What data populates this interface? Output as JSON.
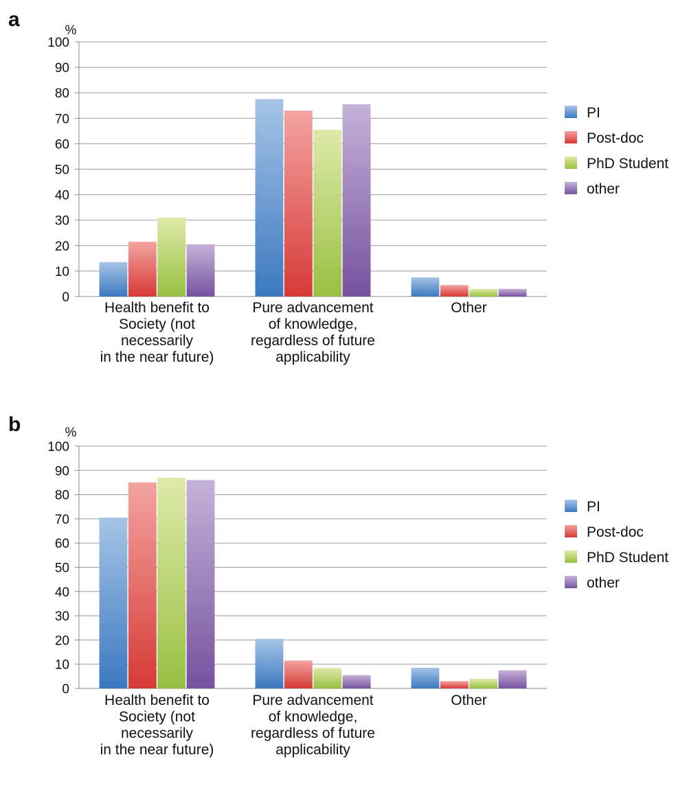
{
  "chart_data": [
    {
      "panel": "a",
      "type": "bar",
      "yunit": "%",
      "ylim": [
        0,
        100
      ],
      "yticks": [
        0,
        10,
        20,
        30,
        40,
        50,
        60,
        70,
        80,
        90,
        100
      ],
      "grid": true,
      "legend_position": "right",
      "categories": [
        [
          "Health benefit to",
          "Society (not",
          "necessarily",
          "in the near future)"
        ],
        [
          "Pure advancement",
          "of knowledge,",
          "regardless of future",
          "applicability"
        ],
        [
          "Other"
        ]
      ],
      "series": [
        {
          "name": "PI",
          "color": "#4a86c8",
          "values": [
            13.5,
            77.5,
            7.5
          ]
        },
        {
          "name": "Post-doc",
          "color": "#d9403c",
          "values": [
            21.5,
            73,
            4.5
          ]
        },
        {
          "name": "PhD Student",
          "color": "#a3c64e",
          "values": [
            31,
            65.5,
            3
          ]
        },
        {
          "name": "other",
          "color": "#7e5aa3",
          "values": [
            20.5,
            75.5,
            3
          ]
        }
      ]
    },
    {
      "panel": "b",
      "type": "bar",
      "yunit": "%",
      "ylim": [
        0,
        100
      ],
      "yticks": [
        0,
        10,
        20,
        30,
        40,
        50,
        60,
        70,
        80,
        90,
        100
      ],
      "grid": true,
      "legend_position": "right",
      "categories": [
        [
          "Health benefit to",
          "Society (not",
          "necessarily",
          "in the near future)"
        ],
        [
          "Pure advancement",
          "of knowledge,",
          "regardless of future",
          "applicability"
        ],
        [
          "Other"
        ]
      ],
      "series": [
        {
          "name": "PI",
          "color": "#4a86c8",
          "values": [
            70.5,
            20.5,
            8.5
          ]
        },
        {
          "name": "Post-doc",
          "color": "#d9403c",
          "values": [
            85,
            11.5,
            3
          ]
        },
        {
          "name": "PhD Student",
          "color": "#a3c64e",
          "values": [
            87,
            8.5,
            4
          ]
        },
        {
          "name": "other",
          "color": "#7e5aa3",
          "values": [
            86,
            5.5,
            7.5
          ]
        }
      ]
    }
  ]
}
